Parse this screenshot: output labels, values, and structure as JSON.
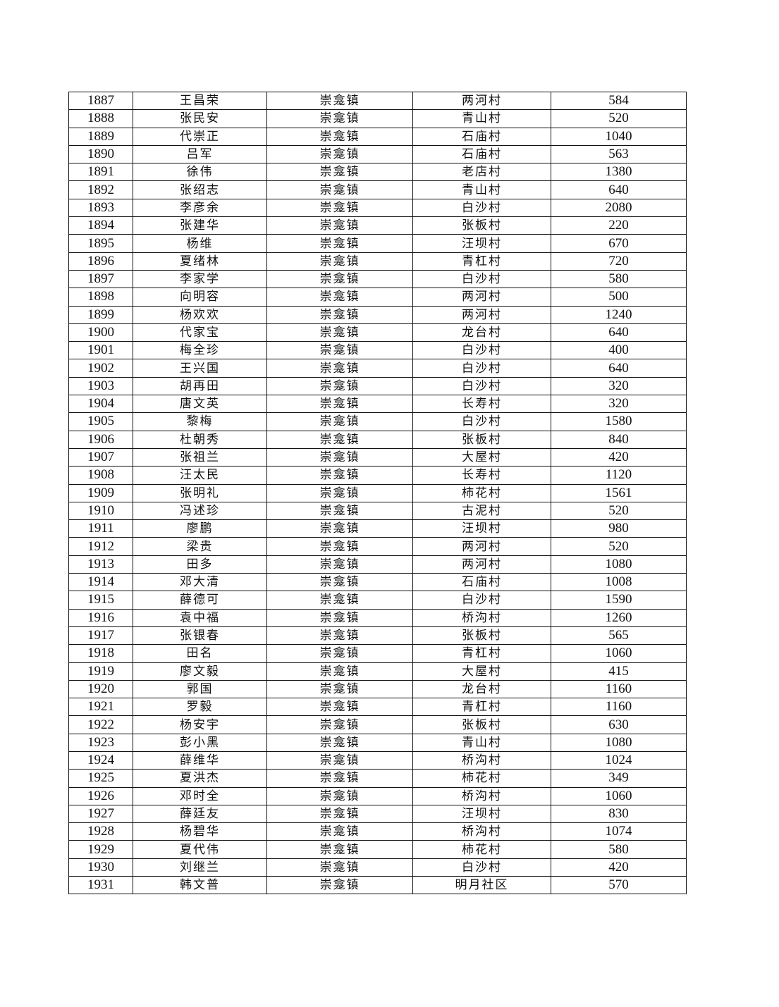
{
  "table": {
    "rows": [
      [
        "1887",
        "王昌荣",
        "崇龛镇",
        "两河村",
        "584"
      ],
      [
        "1888",
        "张民安",
        "崇龛镇",
        "青山村",
        "520"
      ],
      [
        "1889",
        "代崇正",
        "崇龛镇",
        "石庙村",
        "1040"
      ],
      [
        "1890",
        "吕军",
        "崇龛镇",
        "石庙村",
        "563"
      ],
      [
        "1891",
        "徐伟",
        "崇龛镇",
        "老店村",
        "1380"
      ],
      [
        "1892",
        "张绍志",
        "崇龛镇",
        "青山村",
        "640"
      ],
      [
        "1893",
        "李彦余",
        "崇龛镇",
        "白沙村",
        "2080"
      ],
      [
        "1894",
        "张建华",
        "崇龛镇",
        "张板村",
        "220"
      ],
      [
        "1895",
        "杨维",
        "崇龛镇",
        "汪坝村",
        "670"
      ],
      [
        "1896",
        "夏绪林",
        "崇龛镇",
        "青杠村",
        "720"
      ],
      [
        "1897",
        "李家学",
        "崇龛镇",
        "白沙村",
        "580"
      ],
      [
        "1898",
        "向明容",
        "崇龛镇",
        "两河村",
        "500"
      ],
      [
        "1899",
        "杨欢欢",
        "崇龛镇",
        "两河村",
        "1240"
      ],
      [
        "1900",
        "代家宝",
        "崇龛镇",
        "龙台村",
        "640"
      ],
      [
        "1901",
        "梅全珍",
        "崇龛镇",
        "白沙村",
        "400"
      ],
      [
        "1902",
        "王兴国",
        "崇龛镇",
        "白沙村",
        "640"
      ],
      [
        "1903",
        "胡再田",
        "崇龛镇",
        "白沙村",
        "320"
      ],
      [
        "1904",
        "唐文英",
        "崇龛镇",
        "长寿村",
        "320"
      ],
      [
        "1905",
        "黎梅",
        "崇龛镇",
        "白沙村",
        "1580"
      ],
      [
        "1906",
        "杜朝秀",
        "崇龛镇",
        "张板村",
        "840"
      ],
      [
        "1907",
        "张祖兰",
        "崇龛镇",
        "大屋村",
        "420"
      ],
      [
        "1908",
        "汪太民",
        "崇龛镇",
        "长寿村",
        "1120"
      ],
      [
        "1909",
        "张明礼",
        "崇龛镇",
        "柿花村",
        "1561"
      ],
      [
        "1910",
        "冯述珍",
        "崇龛镇",
        "古泥村",
        "520"
      ],
      [
        "1911",
        "廖鹏",
        "崇龛镇",
        "汪坝村",
        "980"
      ],
      [
        "1912",
        "梁贵",
        "崇龛镇",
        "两河村",
        "520"
      ],
      [
        "1913",
        "田多",
        "崇龛镇",
        "两河村",
        "1080"
      ],
      [
        "1914",
        "邓大清",
        "崇龛镇",
        "石庙村",
        "1008"
      ],
      [
        "1915",
        "薛德可",
        "崇龛镇",
        "白沙村",
        "1590"
      ],
      [
        "1916",
        "袁中福",
        "崇龛镇",
        "桥沟村",
        "1260"
      ],
      [
        "1917",
        "张银春",
        "崇龛镇",
        "张板村",
        "565"
      ],
      [
        "1918",
        "田名",
        "崇龛镇",
        "青杠村",
        "1060"
      ],
      [
        "1919",
        "廖文毅",
        "崇龛镇",
        "大屋村",
        "415"
      ],
      [
        "1920",
        "郭国",
        "崇龛镇",
        "龙台村",
        "1160"
      ],
      [
        "1921",
        "罗毅",
        "崇龛镇",
        "青杠村",
        "1160"
      ],
      [
        "1922",
        "杨安宇",
        "崇龛镇",
        "张板村",
        "630"
      ],
      [
        "1923",
        "彭小黑",
        "崇龛镇",
        "青山村",
        "1080"
      ],
      [
        "1924",
        "薛维华",
        "崇龛镇",
        "桥沟村",
        "1024"
      ],
      [
        "1925",
        "夏洪杰",
        "崇龛镇",
        "柿花村",
        "349"
      ],
      [
        "1926",
        "邓时全",
        "崇龛镇",
        "桥沟村",
        "1060"
      ],
      [
        "1927",
        "薛廷友",
        "崇龛镇",
        "汪坝村",
        "830"
      ],
      [
        "1928",
        "杨碧华",
        "崇龛镇",
        "桥沟村",
        "1074"
      ],
      [
        "1929",
        "夏代伟",
        "崇龛镇",
        "柿花村",
        "580"
      ],
      [
        "1930",
        "刘继兰",
        "崇龛镇",
        "白沙村",
        "420"
      ],
      [
        "1931",
        "韩文普",
        "崇龛镇",
        "明月社区",
        "570"
      ]
    ]
  }
}
